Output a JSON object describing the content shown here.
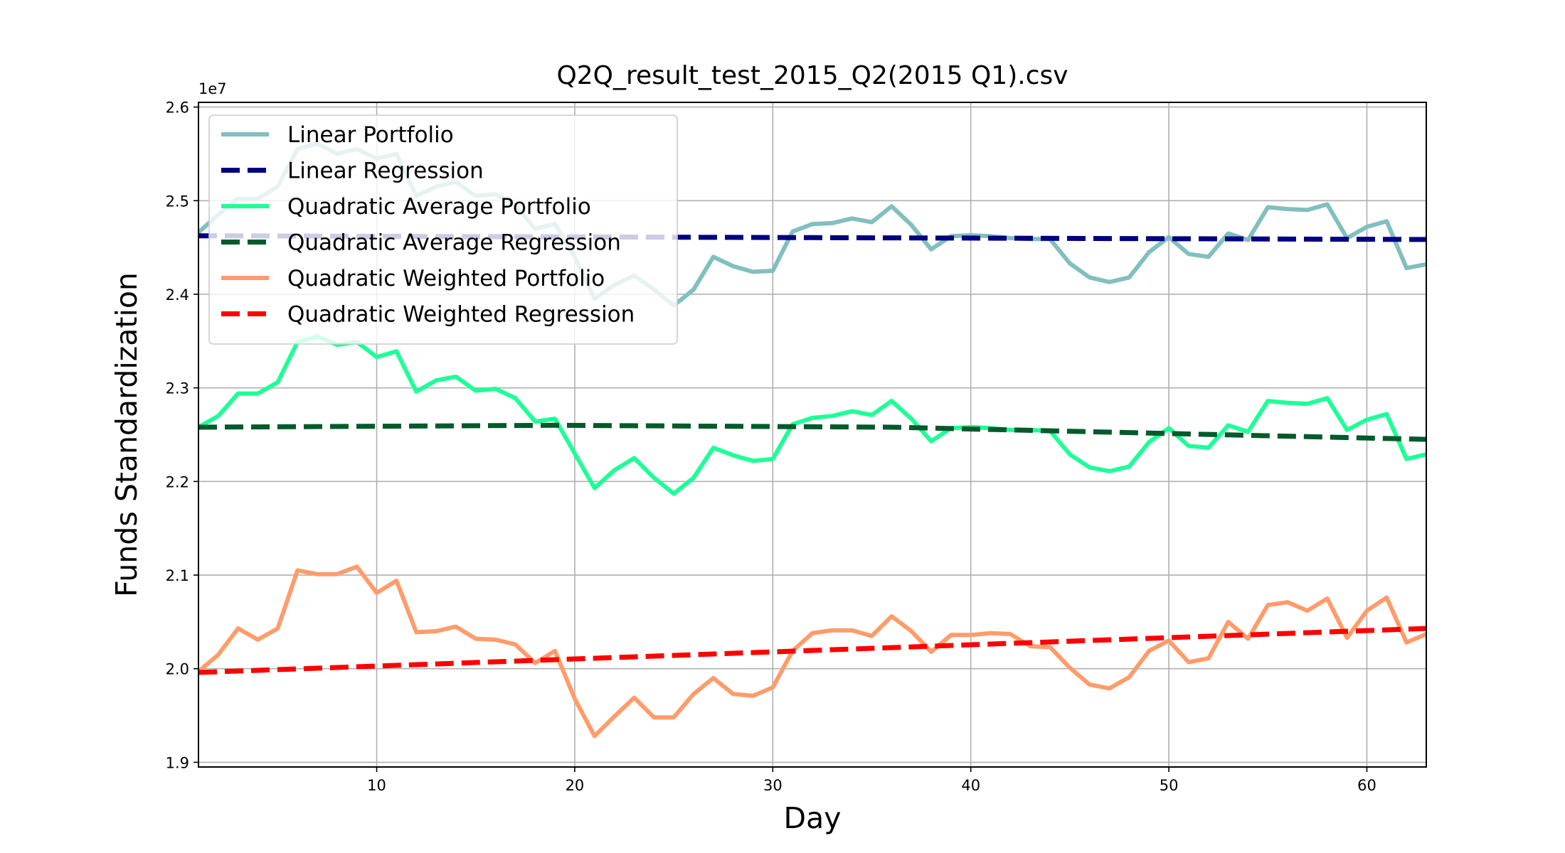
{
  "chart_data": {
    "type": "line",
    "title": "Q2Q_result_test_2015_Q2(2015 Q1).csv",
    "xlabel": "Day",
    "ylabel": "Funds Standardization",
    "y_offset_label": "1e7",
    "xlim": [
      1,
      63
    ],
    "ylim": [
      1.895,
      2.605
    ],
    "x_ticks": [
      10,
      20,
      30,
      40,
      50,
      60
    ],
    "y_ticks": [
      1.9,
      2.0,
      2.1,
      2.2,
      2.3,
      2.4,
      2.5,
      2.6
    ],
    "x_tick_labels": [
      "10",
      "20",
      "30",
      "40",
      "50",
      "60"
    ],
    "y_tick_labels": [
      "1.9",
      "2.0",
      "2.1",
      "2.2",
      "2.3",
      "2.4",
      "2.5",
      "2.6"
    ],
    "grid": true,
    "legend_position": "upper-left",
    "series": [
      {
        "name": "Linear Portfolio",
        "color": "#82bfbf",
        "style": "solid",
        "x": [
          1,
          2,
          3,
          4,
          5,
          6,
          7,
          8,
          9,
          10,
          11,
          12,
          13,
          14,
          15,
          16,
          17,
          18,
          19,
          20,
          21,
          22,
          23,
          24,
          25,
          26,
          27,
          28,
          29,
          30,
          31,
          32,
          33,
          34,
          35,
          36,
          37,
          38,
          39,
          40,
          41,
          42,
          43,
          44,
          45,
          46,
          47,
          48,
          49,
          50,
          51,
          52,
          53,
          54,
          55,
          56,
          57,
          58,
          59,
          60,
          61,
          62,
          63
        ],
        "values": [
          2.466,
          2.485,
          2.502,
          2.502,
          2.515,
          2.555,
          2.561,
          2.55,
          2.555,
          2.545,
          2.55,
          2.505,
          2.515,
          2.52,
          2.505,
          2.507,
          2.495,
          2.47,
          2.475,
          2.44,
          2.395,
          2.41,
          2.42,
          2.405,
          2.388,
          2.405,
          2.44,
          2.43,
          2.424,
          2.425,
          2.467,
          2.475,
          2.476,
          2.481,
          2.477,
          2.494,
          2.474,
          2.448,
          2.462,
          2.463,
          2.462,
          2.46,
          2.459,
          2.459,
          2.433,
          2.418,
          2.413,
          2.418,
          2.445,
          2.461,
          2.443,
          2.44,
          2.465,
          2.458,
          2.493,
          2.491,
          2.49,
          2.496,
          2.46,
          2.472,
          2.478,
          2.428,
          2.432
        ]
      },
      {
        "name": "Linear Regression",
        "color": "#000080",
        "style": "dashed",
        "x": [
          1,
          63
        ],
        "values": [
          2.4625,
          2.4585
        ]
      },
      {
        "name": "Quadratic Average Portfolio",
        "color": "#1eff97",
        "style": "solid",
        "x": [
          1,
          2,
          3,
          4,
          5,
          6,
          7,
          8,
          9,
          10,
          11,
          12,
          13,
          14,
          15,
          16,
          17,
          18,
          19,
          20,
          21,
          22,
          23,
          24,
          25,
          26,
          27,
          28,
          29,
          30,
          31,
          32,
          33,
          34,
          35,
          36,
          37,
          38,
          39,
          40,
          41,
          42,
          43,
          44,
          45,
          46,
          47,
          48,
          49,
          50,
          51,
          52,
          53,
          54,
          55,
          56,
          57,
          58,
          59,
          60,
          61,
          62,
          63
        ],
        "values": [
          2.258,
          2.27,
          2.294,
          2.294,
          2.306,
          2.349,
          2.355,
          2.346,
          2.349,
          2.333,
          2.339,
          2.296,
          2.308,
          2.312,
          2.297,
          2.299,
          2.289,
          2.264,
          2.267,
          2.23,
          2.193,
          2.212,
          2.225,
          2.204,
          2.187,
          2.204,
          2.236,
          2.228,
          2.222,
          2.224,
          2.261,
          2.268,
          2.27,
          2.275,
          2.271,
          2.286,
          2.267,
          2.243,
          2.257,
          2.258,
          2.257,
          2.255,
          2.255,
          2.254,
          2.229,
          2.215,
          2.211,
          2.216,
          2.242,
          2.257,
          2.238,
          2.236,
          2.26,
          2.253,
          2.286,
          2.284,
          2.283,
          2.289,
          2.255,
          2.266,
          2.272,
          2.224,
          2.229
        ]
      },
      {
        "name": "Quadratic Average Regression",
        "color": "#005a2a",
        "style": "dashed",
        "x": [
          1,
          19,
          36,
          63
        ],
        "values": [
          2.258,
          2.26,
          2.258,
          2.245
        ]
      },
      {
        "name": "Quadratic Weighted Portfolio",
        "color": "#ff9c6b",
        "style": "solid",
        "x": [
          1,
          2,
          3,
          4,
          5,
          6,
          7,
          8,
          9,
          10,
          11,
          12,
          13,
          14,
          15,
          16,
          17,
          18,
          19,
          20,
          21,
          22,
          23,
          24,
          25,
          26,
          27,
          28,
          29,
          30,
          31,
          32,
          33,
          34,
          35,
          36,
          37,
          38,
          39,
          40,
          41,
          42,
          43,
          44,
          45,
          46,
          47,
          48,
          49,
          50,
          51,
          52,
          53,
          54,
          55,
          56,
          57,
          58,
          59,
          60,
          61,
          62,
          63
        ],
        "values": [
          1.997,
          2.015,
          2.043,
          2.031,
          2.043,
          2.105,
          2.101,
          2.101,
          2.109,
          2.081,
          2.094,
          2.039,
          2.04,
          2.045,
          2.032,
          2.031,
          2.026,
          2.006,
          2.019,
          1.968,
          1.928,
          1.949,
          1.969,
          1.948,
          1.948,
          1.973,
          1.99,
          1.973,
          1.971,
          1.98,
          2.019,
          2.038,
          2.041,
          2.041,
          2.035,
          2.056,
          2.04,
          2.018,
          2.036,
          2.036,
          2.038,
          2.037,
          2.024,
          2.023,
          2.001,
          1.983,
          1.979,
          1.991,
          2.019,
          2.03,
          2.007,
          2.011,
          2.05,
          2.032,
          2.068,
          2.071,
          2.062,
          2.075,
          2.033,
          2.062,
          2.076,
          2.028,
          2.037
        ]
      },
      {
        "name": "Quadratic Weighted Regression",
        "color": "#ff0000",
        "style": "dashed",
        "x": [
          1,
          63
        ],
        "values": [
          1.996,
          2.043
        ]
      }
    ]
  }
}
